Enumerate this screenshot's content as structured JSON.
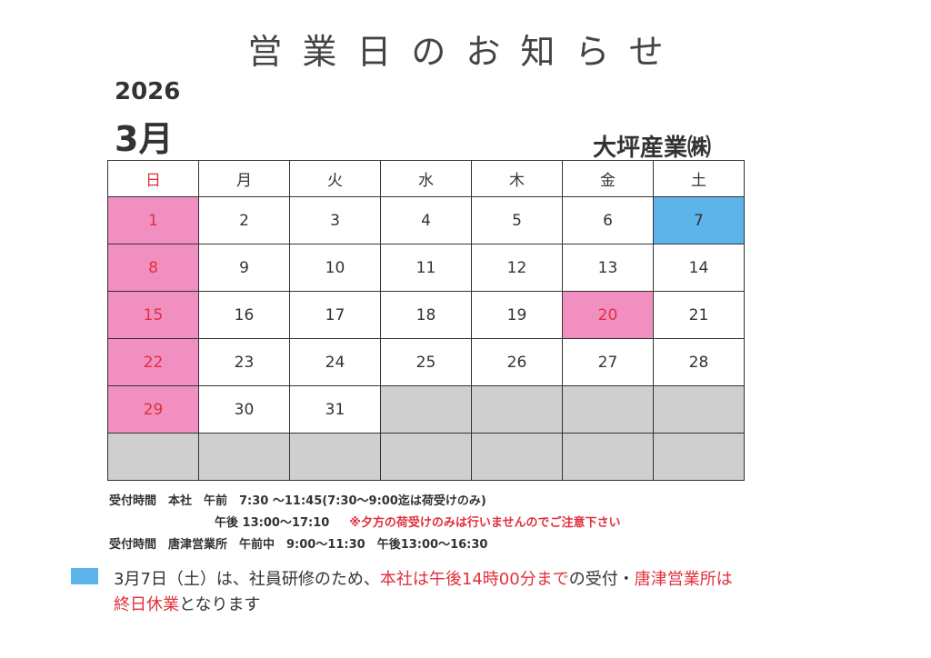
{
  "title": "営業日のお知らせ",
  "year": "2026",
  "month": "3月",
  "company": "大坪産業㈱",
  "colors": {
    "holiday": "#f18fc0",
    "special": "#5cb4ea",
    "empty": "#cfcfcf",
    "red_text": "#e0303c"
  },
  "weekdays": [
    "日",
    "月",
    "火",
    "水",
    "木",
    "金",
    "土"
  ],
  "weeks": [
    [
      {
        "d": "1",
        "t": "holiday"
      },
      {
        "d": "2"
      },
      {
        "d": "3"
      },
      {
        "d": "4"
      },
      {
        "d": "5"
      },
      {
        "d": "6"
      },
      {
        "d": "7",
        "t": "special"
      }
    ],
    [
      {
        "d": "8",
        "t": "holiday"
      },
      {
        "d": "9"
      },
      {
        "d": "10"
      },
      {
        "d": "11"
      },
      {
        "d": "12"
      },
      {
        "d": "13"
      },
      {
        "d": "14"
      }
    ],
    [
      {
        "d": "15",
        "t": "holiday"
      },
      {
        "d": "16"
      },
      {
        "d": "17"
      },
      {
        "d": "18"
      },
      {
        "d": "19"
      },
      {
        "d": "20",
        "t": "holiday"
      },
      {
        "d": "21"
      }
    ],
    [
      {
        "d": "22",
        "t": "holiday"
      },
      {
        "d": "23"
      },
      {
        "d": "24"
      },
      {
        "d": "25"
      },
      {
        "d": "26"
      },
      {
        "d": "27"
      },
      {
        "d": "28"
      }
    ],
    [
      {
        "d": "29",
        "t": "holiday"
      },
      {
        "d": "30"
      },
      {
        "d": "31"
      },
      {
        "d": "",
        "t": "empty"
      },
      {
        "d": "",
        "t": "empty"
      },
      {
        "d": "",
        "t": "empty"
      },
      {
        "d": "",
        "t": "empty"
      }
    ],
    [
      {
        "d": "",
        "t": "empty"
      },
      {
        "d": "",
        "t": "empty"
      },
      {
        "d": "",
        "t": "empty"
      },
      {
        "d": "",
        "t": "empty"
      },
      {
        "d": "",
        "t": "empty"
      },
      {
        "d": "",
        "t": "empty"
      },
      {
        "d": "",
        "t": "empty"
      }
    ]
  ],
  "notes": {
    "line1": "受付時間　本社　午前　7:30 ～11:45(7:30～9:00迄は荷受けのみ)",
    "line2a": "午後 13:00～17:10",
    "line2b": "※夕方の荷受けのみは行いませんのでご注意下さい",
    "line3": "受付時間　唐津営業所　午前中　9:00～11:30　午後13:00～16:30"
  },
  "message": {
    "p1": "3月7日（土）は、社員研修のため、",
    "p2": "本社は午後14時00分まで",
    "p3": "の受付・",
    "p4": "唐津営業所は",
    "p5": "終日休業",
    "p6": "となります"
  }
}
